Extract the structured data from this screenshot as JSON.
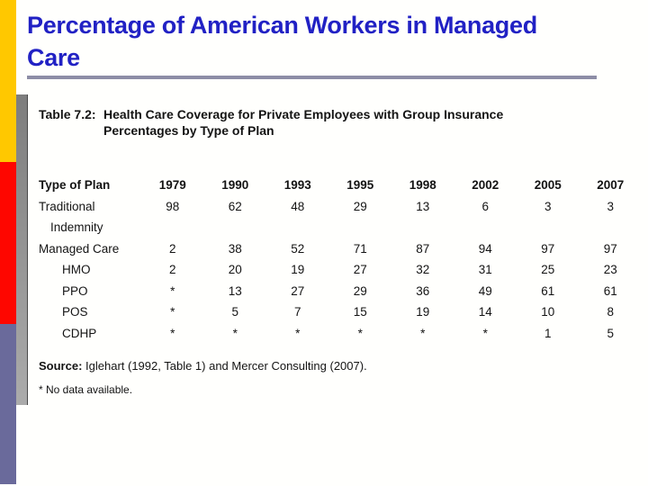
{
  "slide": {
    "title": "Percentage of American Workers in Managed Care",
    "accent_colors": {
      "title_blue": "#2121c4",
      "underline_gray": "#8d8da6",
      "bar_yellow": "#ffc800",
      "bar_red": "#fe0600",
      "bar_purple": "#6a6a9b"
    }
  },
  "figure": {
    "label": "Table 7.2:",
    "caption_line1": "Health Care Coverage for Private Employees with Group Insurance",
    "caption_line2": "Percentages by Type of Plan",
    "source_label": "Source:",
    "source_text": " Iglehart (1992, Table 1) and Mercer Consulting (2007).",
    "footnote": "* No data available."
  },
  "chart_data": {
    "type": "table",
    "title": "Health Care Coverage for Private Employees with Group Insurance — Percentages by Type of Plan",
    "columns": [
      "Type of Plan",
      "1979",
      "1990",
      "1993",
      "1995",
      "1998",
      "2002",
      "2005",
      "2007"
    ],
    "rows": [
      {
        "label": "Traditional",
        "indent": 0,
        "values": [
          "98",
          "62",
          "48",
          "29",
          "13",
          "6",
          "3",
          "3"
        ]
      },
      {
        "label": "Indemnity",
        "indent": 1,
        "values": [
          "",
          "",
          "",
          "",
          "",
          "",
          "",
          ""
        ]
      },
      {
        "label": "Managed Care",
        "indent": 0,
        "values": [
          "2",
          "38",
          "52",
          "71",
          "87",
          "94",
          "97",
          "97"
        ]
      },
      {
        "label": "HMO",
        "indent": 2,
        "values": [
          "2",
          "20",
          "19",
          "27",
          "32",
          "31",
          "25",
          "23"
        ]
      },
      {
        "label": "PPO",
        "indent": 2,
        "values": [
          "*",
          "13",
          "27",
          "29",
          "36",
          "49",
          "61",
          "61"
        ]
      },
      {
        "label": "POS",
        "indent": 2,
        "values": [
          "*",
          "5",
          "7",
          "15",
          "19",
          "14",
          "10",
          "8"
        ]
      },
      {
        "label": "CDHP",
        "indent": 2,
        "values": [
          "*",
          "*",
          "*",
          "*",
          "*",
          "*",
          "1",
          "5"
        ]
      }
    ],
    "notes": "* = no data available; values are percentages of private employees with group insurance"
  }
}
